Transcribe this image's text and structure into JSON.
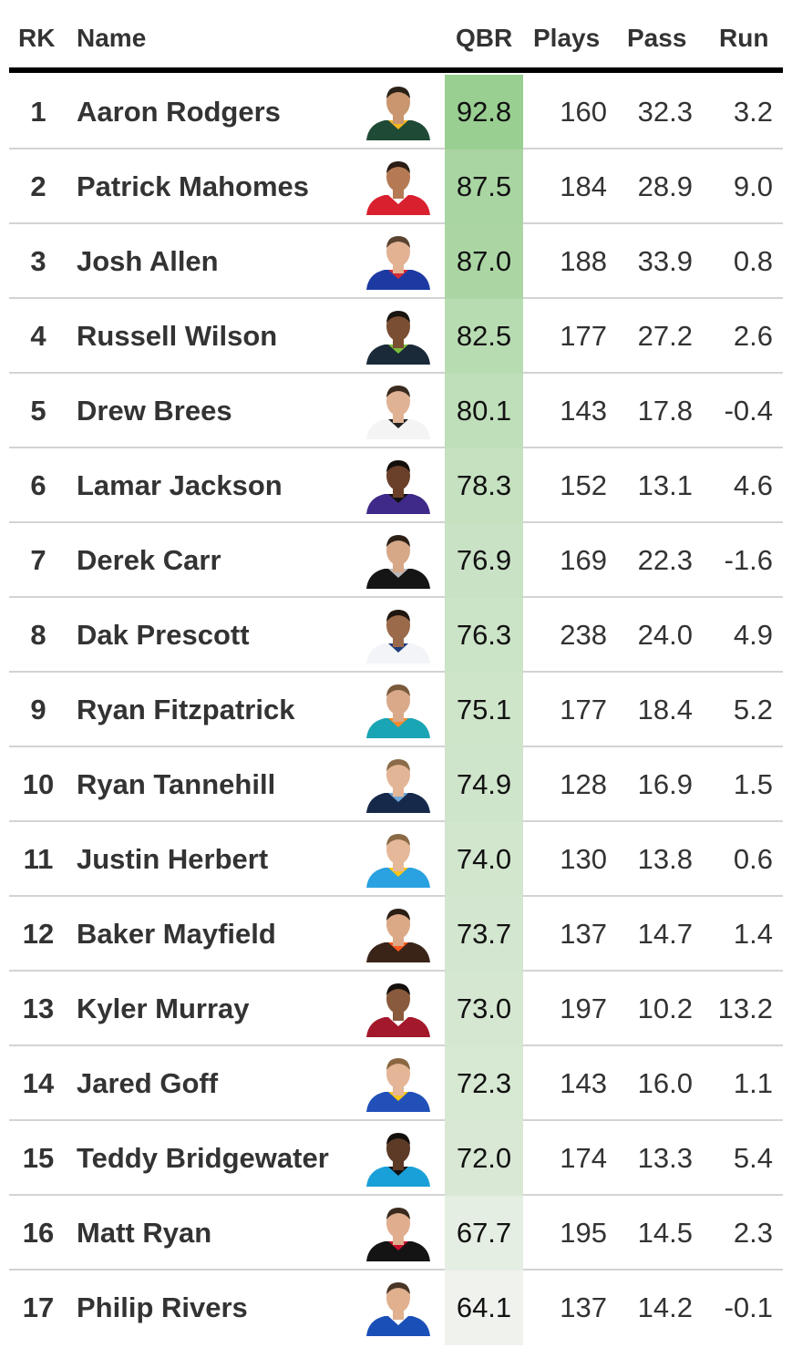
{
  "chart_data": {
    "type": "table",
    "columns": [
      "RK",
      "Name",
      "QBR",
      "Plays",
      "Pass",
      "Run"
    ],
    "qbr_color_scale": {
      "low": "#f0f2ee",
      "high": "#99cf91"
    },
    "rows": [
      {
        "rk": "1",
        "name": "Aaron Rodgers",
        "qbr": "92.8",
        "plays": "160",
        "pass": "32.3",
        "run": "3.2",
        "jersey": "#1f4a35",
        "trim": "#f3b620",
        "skin": "#c9966f",
        "hair": "#2a2118"
      },
      {
        "rk": "2",
        "name": "Patrick Mahomes",
        "qbr": "87.5",
        "plays": "184",
        "pass": "28.9",
        "run": "9.0",
        "jersey": "#d9202e",
        "trim": "#ffffff",
        "skin": "#b57a54",
        "hair": "#2a1d15"
      },
      {
        "rk": "3",
        "name": "Josh Allen",
        "qbr": "87.0",
        "plays": "188",
        "pass": "33.9",
        "run": "0.8",
        "jersey": "#1d3aa3",
        "trim": "#d62a36",
        "skin": "#e2b293",
        "hair": "#5a4330"
      },
      {
        "rk": "4",
        "name": "Russell Wilson",
        "qbr": "82.5",
        "plays": "177",
        "pass": "27.2",
        "run": "2.6",
        "jersey": "#1a2a38",
        "trim": "#7bbf3a",
        "skin": "#7a4e32",
        "hair": "#1a1410"
      },
      {
        "rk": "5",
        "name": "Drew Brees",
        "qbr": "80.1",
        "plays": "143",
        "pass": "17.8",
        "run": "-0.4",
        "jersey": "#f4f4f4",
        "trim": "#222222",
        "skin": "#e0b294",
        "hair": "#3b2b1e"
      },
      {
        "rk": "6",
        "name": "Lamar Jackson",
        "qbr": "78.3",
        "plays": "152",
        "pass": "13.1",
        "run": "4.6",
        "jersey": "#3f2a8a",
        "trim": "#111111",
        "skin": "#6a402a",
        "hair": "#140f0c"
      },
      {
        "rk": "7",
        "name": "Derek Carr",
        "qbr": "76.9",
        "plays": "169",
        "pass": "22.3",
        "run": "-1.6",
        "jersey": "#151515",
        "trim": "#b9b9b9",
        "skin": "#d6a888",
        "hair": "#2c2017"
      },
      {
        "rk": "8",
        "name": "Dak Prescott",
        "qbr": "76.3",
        "plays": "238",
        "pass": "24.0",
        "run": "4.9",
        "jersey": "#f2f4f8",
        "trim": "#1f3b7a",
        "skin": "#9a6a4a",
        "hair": "#1e1610"
      },
      {
        "rk": "9",
        "name": "Ryan Fitzpatrick",
        "qbr": "75.1",
        "plays": "177",
        "pass": "18.4",
        "run": "5.2",
        "jersey": "#1aa5b4",
        "trim": "#f48a2a",
        "skin": "#d9a98a",
        "hair": "#7a5a3c"
      },
      {
        "rk": "10",
        "name": "Ryan Tannehill",
        "qbr": "74.9",
        "plays": "128",
        "pass": "16.9",
        "run": "1.5",
        "jersey": "#16294a",
        "trim": "#6ea8d8",
        "skin": "#e3b597",
        "hair": "#8a6a48"
      },
      {
        "rk": "11",
        "name": "Justin Herbert",
        "qbr": "74.0",
        "plays": "130",
        "pass": "13.8",
        "run": "0.6",
        "jersey": "#2aa1e0",
        "trim": "#f5c518",
        "skin": "#e6b89a",
        "hair": "#8a6a45"
      },
      {
        "rk": "12",
        "name": "Baker Mayfield",
        "qbr": "73.7",
        "plays": "137",
        "pass": "14.7",
        "run": "1.4",
        "jersey": "#3a2418",
        "trim": "#ff5a1f",
        "skin": "#dca987",
        "hair": "#2a1d14"
      },
      {
        "rk": "13",
        "name": "Kyler Murray",
        "qbr": "73.0",
        "plays": "197",
        "pass": "10.2",
        "run": "13.2",
        "jersey": "#a4182c",
        "trim": "#ffffff",
        "skin": "#8a5a3c",
        "hair": "#140f0c"
      },
      {
        "rk": "14",
        "name": "Jared Goff",
        "qbr": "72.3",
        "plays": "143",
        "pass": "16.0",
        "run": "1.1",
        "jersey": "#2050b8",
        "trim": "#f5c518",
        "skin": "#e4b597",
        "hair": "#8a6640"
      },
      {
        "rk": "15",
        "name": "Teddy Bridgewater",
        "qbr": "72.0",
        "plays": "174",
        "pass": "13.3",
        "run": "5.4",
        "jersey": "#1aa0d8",
        "trim": "#111111",
        "skin": "#5c3a26",
        "hair": "#120e0b"
      },
      {
        "rk": "16",
        "name": "Matt Ryan",
        "qbr": "67.7",
        "plays": "195",
        "pass": "14.5",
        "run": "2.3",
        "jersey": "#141414",
        "trim": "#c8102e",
        "skin": "#e0ae8e",
        "hair": "#3a2a1d"
      },
      {
        "rk": "17",
        "name": "Philip Rivers",
        "qbr": "64.1",
        "plays": "137",
        "pass": "14.2",
        "run": "-0.1",
        "jersey": "#1b4fb8",
        "trim": "#ffffff",
        "skin": "#e0b08f",
        "hair": "#4a3626"
      }
    ]
  }
}
